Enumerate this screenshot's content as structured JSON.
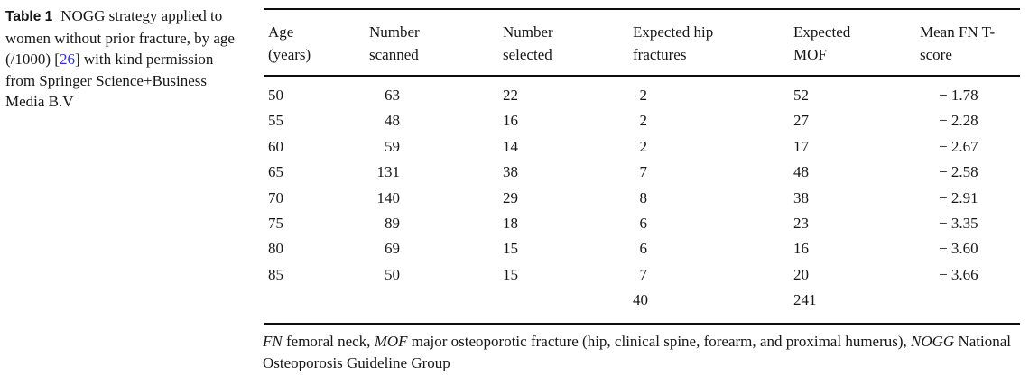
{
  "caption": {
    "label": "Table 1",
    "body_start": "NOGG strategy applied to women without prior fracture, by age (/1000) [",
    "citation": "26",
    "body_end": "] with kind permission from Springer Science+Business Media B.V"
  },
  "table": {
    "columns": [
      {
        "line1": "Age",
        "line2": "(years)"
      },
      {
        "line1": "Number",
        "line2": "scanned"
      },
      {
        "line1": "Number",
        "line2": "selected"
      },
      {
        "line1": "Expected hip",
        "line2": "fractures"
      },
      {
        "line1": "Expected",
        "line2": "MOF"
      },
      {
        "line1": "Mean FN T-",
        "line2": "score"
      }
    ],
    "rows": [
      {
        "age": "50",
        "scanned": "63",
        "selected": "22",
        "hip": "2",
        "mof": "52",
        "tscore": "− 1.78"
      },
      {
        "age": "55",
        "scanned": "48",
        "selected": "16",
        "hip": "2",
        "mof": "27",
        "tscore": "− 2.28"
      },
      {
        "age": "60",
        "scanned": "59",
        "selected": "14",
        "hip": "2",
        "mof": "17",
        "tscore": "− 2.67"
      },
      {
        "age": "65",
        "scanned": "131",
        "selected": "38",
        "hip": "7",
        "mof": "48",
        "tscore": "− 2.58"
      },
      {
        "age": "70",
        "scanned": "140",
        "selected": "29",
        "hip": "8",
        "mof": "38",
        "tscore": "− 2.91"
      },
      {
        "age": "75",
        "scanned": "89",
        "selected": "18",
        "hip": "6",
        "mof": "23",
        "tscore": "− 3.35"
      },
      {
        "age": "80",
        "scanned": "69",
        "selected": "15",
        "hip": "6",
        "mof": "16",
        "tscore": "− 3.60"
      },
      {
        "age": "85",
        "scanned": "50",
        "selected": "15",
        "hip": "7",
        "mof": "20",
        "tscore": "− 3.66"
      }
    ],
    "totals": {
      "hip": "40",
      "mof": "241"
    }
  },
  "footnote": {
    "term1": "FN",
    "def1": " femoral neck, ",
    "term2": "MOF",
    "def2": " major osteoporotic fracture (hip, clinical spine, forearm, and proximal humerus), ",
    "term3": "NOGG",
    "def3": " National Osteoporosis Guideline Group"
  },
  "colors": {
    "text": "#161616",
    "rule": "#0d0d0d",
    "citation_link": "#3333cc"
  }
}
